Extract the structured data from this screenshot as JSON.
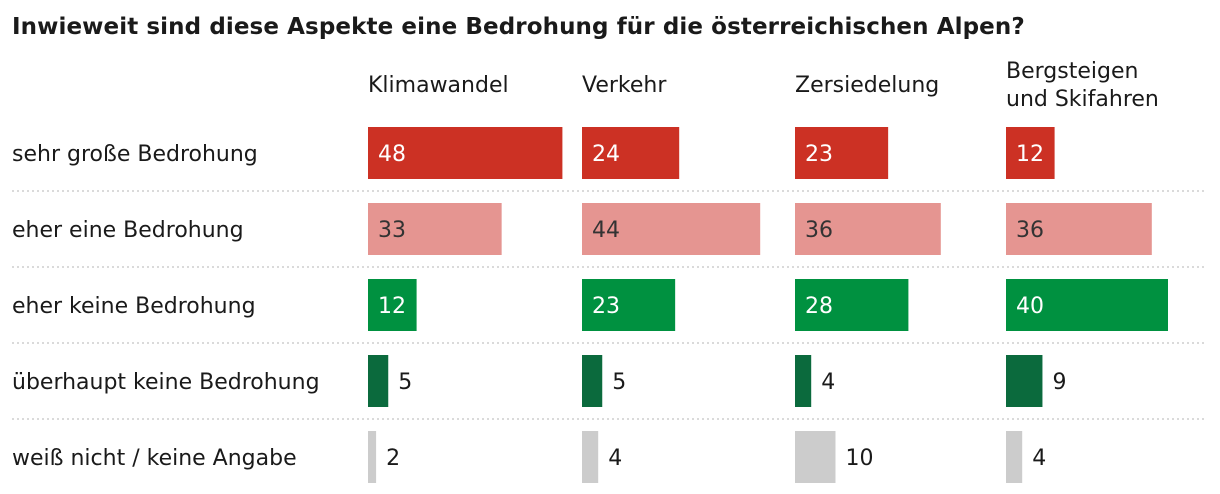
{
  "title": "Inwieweit sind diese Aspekte eine Bedrohung für die österreichischen Alpen?",
  "colors": {
    "sehr_gross": "#cc3124",
    "eher_eine": "#e59591",
    "eher_keine": "#009140",
    "ueberhaupt_keine": "#0b6a3d",
    "weiss_nicht": "#cccccc",
    "separator": "#b5b5b5"
  },
  "chart_data": {
    "type": "bar",
    "title": "Inwieweit sind diese Aspekte eine Bedrohung für die österreichischen Alpen?",
    "categories": [
      "Klimawandel",
      "Verkehr",
      "Zersiedelung",
      "Bergsteigen und Skifahren"
    ],
    "category_lines": [
      [
        "Klimawandel"
      ],
      [
        "Verkehr"
      ],
      [
        "Zersiedelung"
      ],
      [
        "Bergsteigen",
        "und Skifahren"
      ]
    ],
    "series": [
      {
        "name": "sehr große Bedrohung",
        "values": [
          48,
          24,
          23,
          12
        ]
      },
      {
        "name": "eher eine Bedrohung",
        "values": [
          33,
          44,
          36,
          36
        ]
      },
      {
        "name": "eher keine Bedrohung",
        "values": [
          12,
          23,
          28,
          40
        ]
      },
      {
        "name": "überhaupt keine Bedrohung",
        "values": [
          5,
          5,
          4,
          9
        ]
      },
      {
        "name": "weiß nicht / keine Angabe",
        "values": [
          2,
          4,
          10,
          4
        ]
      }
    ],
    "grid": false
  }
}
